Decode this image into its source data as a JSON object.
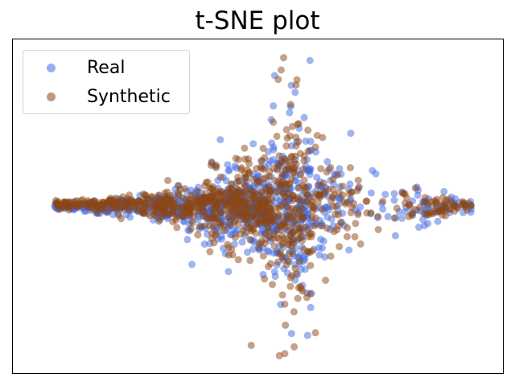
{
  "chart_data": {
    "type": "scatter",
    "title": "t-SNE plot",
    "xlabel": "",
    "ylabel": "",
    "axes_ticks": "hidden",
    "grid": false,
    "legend_placement": "top-left",
    "xlim": [
      -100,
      100
    ],
    "ylim": [
      -100,
      100
    ],
    "series": [
      {
        "name": "Real",
        "color": "#4169e1",
        "alpha": 0.5,
        "values": []
      },
      {
        "name": "Synthetic",
        "color": "#8b4513",
        "alpha": 0.5,
        "values": []
      }
    ]
  }
}
